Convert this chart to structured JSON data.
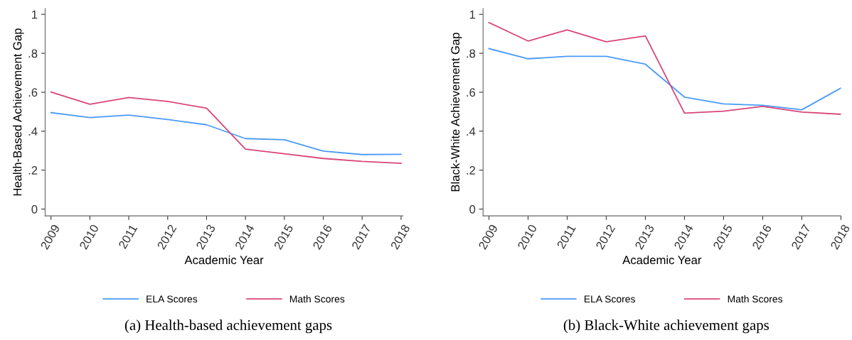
{
  "chart_data": [
    {
      "type": "line",
      "ylabel": "Health-Based Achievement Gap",
      "xlabel": "Academic Year",
      "annotations": [
        "(a) Health-based achievement gaps"
      ],
      "x": [
        2009,
        2010,
        2011,
        2012,
        2013,
        2014,
        2015,
        2016,
        2017,
        2018
      ],
      "xlim": [
        2008.85,
        2018.05
      ],
      "xticks": [
        2009,
        2010,
        2011,
        2012,
        2013,
        2014,
        2015,
        2016,
        2017,
        2018
      ],
      "ylim": [
        -0.035,
        1.03
      ],
      "yticks": [
        0,
        {
          "value": 0.2,
          "label": ".2"
        },
        {
          "value": 0.4,
          "label": ".4"
        },
        {
          "value": 0.6,
          "label": ".6"
        },
        {
          "value": 0.8,
          "label": ".8"
        },
        1
      ],
      "legend": "bottom",
      "grid": false,
      "series": [
        {
          "name": "ELA Scores",
          "color": "#4a9bf7",
          "values": [
            0.495,
            0.47,
            0.483,
            0.46,
            0.433,
            0.362,
            0.356,
            0.298,
            0.28,
            0.281
          ]
        },
        {
          "name": "Math Scores",
          "color": "#d9457a",
          "values": [
            0.601,
            0.538,
            0.573,
            0.553,
            0.518,
            0.308,
            0.284,
            0.26,
            0.245,
            0.235
          ]
        }
      ]
    },
    {
      "type": "line",
      "ylabel": "Black-White Achievement Gap",
      "xlabel": "Academic Year",
      "annotations": [
        "(b) Black-White achievement gaps"
      ],
      "x": [
        2009,
        2010,
        2011,
        2012,
        2013,
        2014,
        2015,
        2016,
        2017,
        2018
      ],
      "xlim": [
        2008.85,
        2018.0
      ],
      "xticks": [
        2009,
        2010,
        2011,
        2012,
        2013,
        2014,
        2015,
        2016,
        2017,
        2018
      ],
      "ylim": [
        -0.035,
        1.03
      ],
      "yticks": [
        0,
        {
          "value": 0.2,
          "label": ".2"
        },
        {
          "value": 0.4,
          "label": ".4"
        },
        {
          "value": 0.6,
          "label": ".6"
        },
        {
          "value": 0.8,
          "label": ".8"
        },
        1
      ],
      "legend": "bottom",
      "grid": false,
      "series": [
        {
          "name": "ELA Scores",
          "color": "#4a9bf7",
          "values": [
            0.824,
            0.772,
            0.784,
            0.784,
            0.744,
            0.575,
            0.54,
            0.533,
            0.51,
            0.622
          ]
        },
        {
          "name": "Math Scores",
          "color": "#d9457a",
          "values": [
            0.958,
            0.863,
            0.92,
            0.859,
            0.889,
            0.493,
            0.503,
            0.527,
            0.498,
            0.487
          ]
        }
      ]
    }
  ]
}
